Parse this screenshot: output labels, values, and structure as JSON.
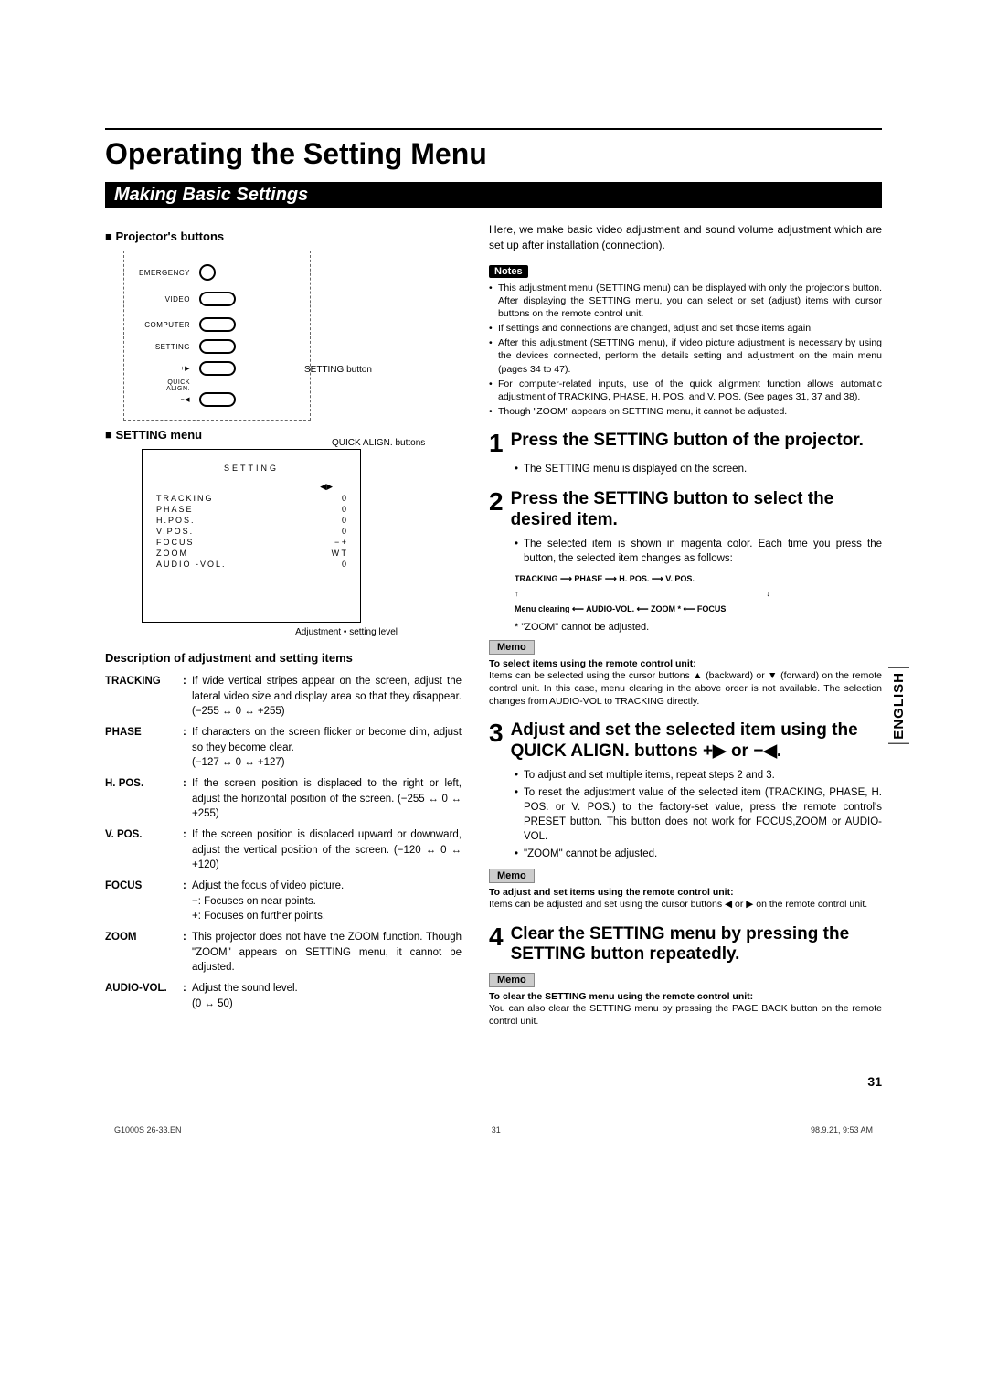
{
  "title": "Operating the Setting Menu",
  "section_banner": "Making Basic Settings",
  "left": {
    "projectors_buttons": "Projector's buttons",
    "button_labels": {
      "emergency": "EMERGENCY",
      "video": "VIDEO",
      "computer": "COMPUTER",
      "setting": "SETTING",
      "quick_align": "QUICK\nALIGN."
    },
    "callout_setting": "SETTING button",
    "callout_quick_align": "QUICK ALIGN. buttons",
    "setting_menu_label": "SETTING menu",
    "setting_menu": {
      "title": "SETTING",
      "rows": [
        {
          "k": "TRACKING",
          "v": "0"
        },
        {
          "k": "PHASE",
          "v": "0"
        },
        {
          "k": "H.POS.",
          "v": "0"
        },
        {
          "k": "V.POS.",
          "v": "0"
        },
        {
          "k": "FOCUS",
          "v": "−   +"
        },
        {
          "k": "ZOOM",
          "v": "W   T"
        },
        {
          "k": "AUDIO -VOL.",
          "v": "0"
        }
      ],
      "arrows": "◀▶"
    },
    "adjustment_note": "Adjustment • setting level",
    "desc_head": "Description of adjustment and setting items",
    "items": [
      {
        "term": "TRACKING",
        "def": "If wide vertical stripes appear on the screen, adjust the lateral video size and display area so that they disappear. (−255 ↔ 0 ↔ +255)"
      },
      {
        "term": "PHASE",
        "def": "If characters on the screen flicker or become dim, adjust so they become clear.\n(−127 ↔ 0 ↔ +127)"
      },
      {
        "term": "H. POS.",
        "def": "If the screen position is displaced to the right or left, adjust the horizontal position of the screen. (−255 ↔ 0 ↔ +255)"
      },
      {
        "term": "V. POS.",
        "def": "If the screen position is displaced upward or downward, adjust the vertical position of the screen. (−120 ↔ 0 ↔ +120)"
      },
      {
        "term": "FOCUS",
        "def": "Adjust the focus of video picture.\n−: Focuses on near points.\n+: Focuses on further points."
      },
      {
        "term": "ZOOM",
        "def": "This projector does not have the ZOOM function. Though \"ZOOM\" appears on SETTING menu, it cannot be adjusted."
      },
      {
        "term": "AUDIO-VOL.",
        "def": "Adjust the sound level.\n(0 ↔ 50)"
      }
    ]
  },
  "right": {
    "intro": "Here, we make basic video adjustment and sound volume adjustment which are set up after installation (connection).",
    "notes_label": "Notes",
    "notes": [
      "This adjustment menu (SETTING menu) can be displayed with only the projector's button. After displaying the SETTING menu, you can select or set (adjust) items with cursor buttons on the remote control unit.",
      "If settings and connections are changed, adjust and set those items again.",
      "After this adjustment (SETTING menu), if video picture adjustment is necessary by using the devices connected, perform the details setting and adjustment on the main menu (pages 34 to 47).",
      "For computer-related inputs, use of the quick alignment function allows automatic adjustment of TRACKING, PHASE, H. POS. and V. POS. (See pages 31, 37 and 38).",
      "Though \"ZOOM\" appears on SETTING menu, it cannot be adjusted."
    ],
    "steps": [
      {
        "num": "1",
        "head": "Press the SETTING button of the projector.",
        "bullets": [
          "The SETTING menu is displayed on the screen."
        ]
      },
      {
        "num": "2",
        "head": "Press the SETTING button to select the desired item.",
        "bullets": [
          "The selected item is shown in magenta color. Each time you press the button, the selected item changes as follows:"
        ],
        "flow_top": "TRACKING ⟶ PHASE ⟶ H. POS. ⟶ V. POS.",
        "flow_bot": "Menu clearing ⟵ AUDIO-VOL. ⟵ ZOOM * ⟵ FOCUS",
        "flow_note": "* \"ZOOM\" cannot be adjusted.",
        "memo_label": "Memo",
        "memo_bold": "To select items using the remote control unit:",
        "memo_body": "Items can be selected using the cursor buttons ▲ (backward) or ▼ (forward) on the remote control unit. In this case, menu clearing in the above order is not available. The selection changes from AUDIO-VOL to TRACKING directly."
      },
      {
        "num": "3",
        "head": "Adjust and set the selected item using the QUICK ALIGN. buttons +▶ or −◀.",
        "bullets": [
          "To adjust and set multiple items, repeat steps 2 and 3.",
          "To reset the adjustment value of the selected item (TRACKING, PHASE, H. POS. or V. POS.) to the factory-set value, press the remote control's PRESET button. This button does not work for FOCUS,ZOOM or AUDIO-VOL.",
          "\"ZOOM\" cannot be adjusted."
        ],
        "memo_label": "Memo",
        "memo_bold": "To adjust and set items using the remote control unit:",
        "memo_body": "Items can be adjusted and set using the cursor buttons ◀ or ▶ on the remote control unit."
      },
      {
        "num": "4",
        "head": "Clear the SETTING menu by pressing the SETTING button repeatedly.",
        "memo_label": "Memo",
        "memo_bold": "To clear the SETTING menu using the remote control unit:",
        "memo_body": "You can also clear the SETTING menu by pressing the PAGE BACK button on the remote control unit."
      }
    ]
  },
  "lang_tab": "ENGLISH",
  "page_number": "31",
  "footer": {
    "left": "G1000S 26-33.EN",
    "mid": "31",
    "right": "98.9.21, 9:53 AM"
  }
}
